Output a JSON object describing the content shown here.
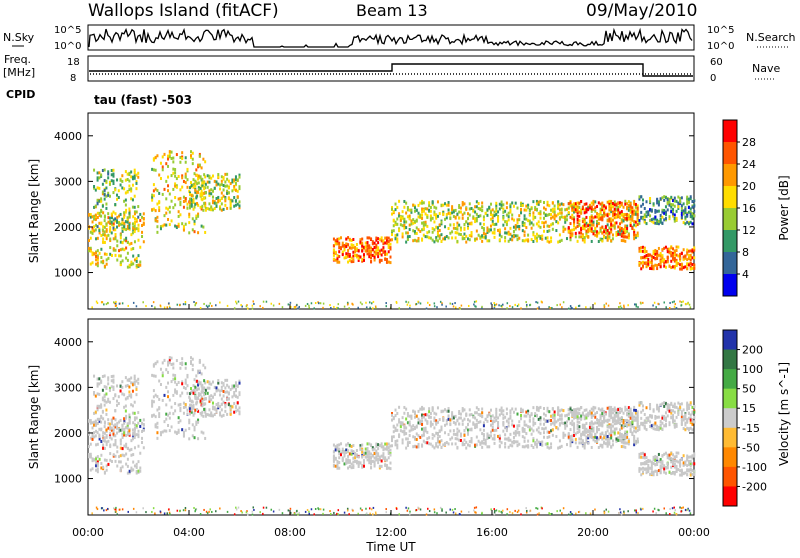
{
  "header": {
    "station": "Wallops Island (fitACF)",
    "beam": "Beam 13",
    "date": "09/May/2010"
  },
  "panels": {
    "nsky_label": "N.Sky",
    "nsearch_label": "N.Search",
    "freq_label_1": "Freq.",
    "freq_label_2": "[MHz]",
    "nave_label": "Nave",
    "cpid_label": "CPID",
    "cpid_text": "tau (fast) -503",
    "nsky_ticks": [
      "10^5",
      "10^0"
    ],
    "nsearch_ticks": [
      "10^5",
      "10^0"
    ],
    "freq_ticks": [
      "18",
      "8"
    ],
    "nave_ticks": [
      "60",
      "0"
    ]
  },
  "chart_data": [
    {
      "type": "heatmap",
      "name": "power",
      "ylabel": "Slant Range [km]",
      "xlabel": "",
      "xlim": [
        0,
        24
      ],
      "ylim": [
        200,
        4500
      ],
      "yticks": [
        1000,
        2000,
        3000,
        4000
      ],
      "colorbar": {
        "label": "Power [dB]",
        "ticks": [
          "28",
          "24",
          "20",
          "16",
          "12",
          "8",
          "4"
        ],
        "colors": [
          "#ff0000",
          "#ff5500",
          "#ff9900",
          "#ffdd00",
          "#99cc33",
          "#339966",
          "#336699",
          "#0000ee"
        ]
      },
      "echo_bands": [
        {
          "t0": 0.0,
          "t1": 2.2,
          "r0": 1150,
          "r1": 2400,
          "level": 18
        },
        {
          "t0": 0.2,
          "t1": 2.0,
          "r0": 1900,
          "r1": 3300,
          "level": 14
        },
        {
          "t0": 2.5,
          "t1": 4.6,
          "r0": 1900,
          "r1": 3700,
          "level": 18
        },
        {
          "t0": 4.0,
          "t1": 6.0,
          "r0": 2400,
          "r1": 3200,
          "level": 16
        },
        {
          "t0": 9.7,
          "t1": 12.0,
          "r0": 1250,
          "r1": 1800,
          "level": 24
        },
        {
          "t0": 12.0,
          "t1": 21.8,
          "r0": 1700,
          "r1": 2600,
          "level": 16
        },
        {
          "t0": 19.0,
          "t1": 21.8,
          "r0": 1800,
          "r1": 2600,
          "level": 24
        },
        {
          "t0": 21.8,
          "t1": 24.0,
          "r0": 1100,
          "r1": 1600,
          "level": 24
        },
        {
          "t0": 21.8,
          "t1": 24.0,
          "r0": 2100,
          "r1": 2700,
          "level": 10
        }
      ]
    },
    {
      "type": "heatmap",
      "name": "velocity",
      "ylabel": "Slant Range [km]",
      "xlabel": "Time UT",
      "xlim": [
        0,
        24
      ],
      "ylim": [
        200,
        4500
      ],
      "yticks": [
        1000,
        2000,
        3000,
        4000
      ],
      "xticks": [
        "00:00",
        "04:00",
        "08:00",
        "12:00",
        "16:00",
        "20:00",
        "00:00"
      ],
      "colorbar": {
        "label": "Velocity [m s^-1]",
        "ticks": [
          "200",
          "100",
          "50",
          "15",
          "-15",
          "-50",
          "-100",
          "-200"
        ],
        "colors": [
          "#2233aa",
          "#337744",
          "#44aa44",
          "#88dd44",
          "#cccccc",
          "#ffbb33",
          "#ff8800",
          "#ff5500",
          "#ff0000"
        ]
      },
      "ground_scatter_color": "#c8c8c8"
    }
  ]
}
